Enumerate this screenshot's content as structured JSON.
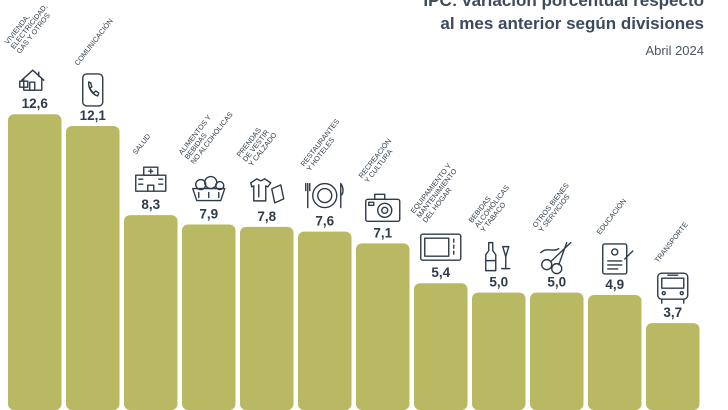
{
  "header": {
    "title_line1": "IPC: variación porcentual respecto",
    "title_line2": "al mes anterior según divisiones",
    "subtitle": "Abril 2024"
  },
  "chart_data": {
    "type": "bar",
    "title": "IPC: variación porcentual respecto al mes anterior según divisiones",
    "subtitle": "Abril 2024",
    "categories": [
      "Vivienda, electricidad, gas y otros",
      "Comunicación",
      "Salud",
      "Alimentos y bebidas no alcohólicas",
      "Prendas de vestir y calzado",
      "Restaurantes y hoteles",
      "Recreación y cultura",
      "Equipamiento y mantenimiento del hogar",
      "Bebidas alcohólicas y tabaco",
      "Otros bienes y servicios",
      "Educación",
      "Transporte"
    ],
    "values": [
      12.6,
      12.1,
      8.3,
      7.9,
      7.8,
      7.6,
      7.1,
      5.4,
      5.0,
      5.0,
      4.9,
      3.7
    ],
    "value_labels": [
      "12,6",
      "12,1",
      "8,3",
      "7,9",
      "7,8",
      "7,6",
      "7,1",
      "5,4",
      "5,0",
      "5,0",
      "4,9",
      "3,7"
    ],
    "label_lines": [
      [
        "VIVIENDA,",
        "ELECTRICIDAD,",
        "GAS Y OTROS"
      ],
      [
        "COMUNICACIÓN"
      ],
      [
        "SALUD"
      ],
      [
        "ALIMENTOS Y",
        "BEBIDAS",
        "NO ALCOHÓLICAS"
      ],
      [
        "PRENDAS",
        "DE VESTIR",
        "Y CALZADO"
      ],
      [
        "RESTAURANTES",
        "Y HOTELES"
      ],
      [
        "RECREACIÓN",
        "Y CULTURA"
      ],
      [
        "EQUIPAMIENTO Y",
        "MANTENIMIENTO",
        "DEL HOGAR"
      ],
      [
        "BEBIDAS",
        "ALCOHÓLICAS",
        "Y TABACO"
      ],
      [
        "OTROS BIENES",
        "Y SERVICIOS"
      ],
      [
        "EDUCACIÓN"
      ],
      [
        "TRANSPORTE"
      ]
    ],
    "icons": [
      "house-icon",
      "phone-icon",
      "hospital-icon",
      "food-basket-icon",
      "clothing-icon",
      "plate-cutlery-icon",
      "camera-icon",
      "microwave-icon",
      "bottles-icon",
      "scissors-icon",
      "document-icon",
      "bus-icon"
    ],
    "bar_color": "#b9b964",
    "ylim": [
      0,
      14
    ]
  }
}
